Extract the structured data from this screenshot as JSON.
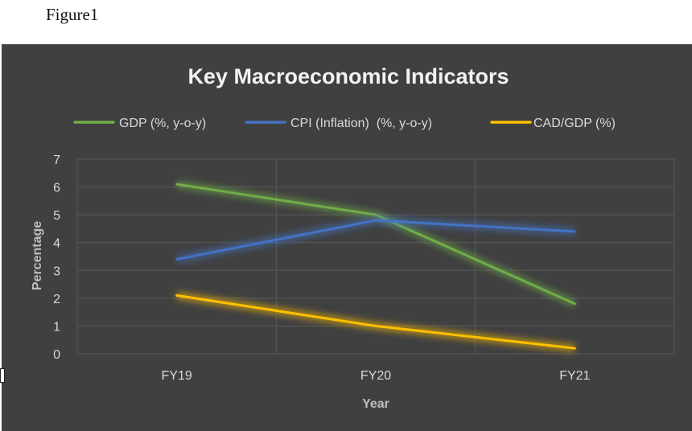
{
  "caption": "Figure1",
  "chart_data": {
    "type": "line",
    "title": "Key Macroeconomic Indicators",
    "xlabel": "Year",
    "ylabel": "Percentage",
    "categories": [
      "FY19",
      "FY20",
      "FY21"
    ],
    "ylim": [
      0,
      7
    ],
    "yticks": [
      0,
      1,
      2,
      3,
      4,
      5,
      6,
      7
    ],
    "grid": true,
    "legend_position": "top",
    "series": [
      {
        "name": "GDP (%, y-o-y)",
        "values": [
          6.1,
          5.0,
          1.8
        ],
        "color": "#70ad47"
      },
      {
        "name": "CPI (Inflation)  (%, y-o-y)",
        "values": [
          3.4,
          4.8,
          4.4
        ],
        "color": "#4472c4"
      },
      {
        "name": "CAD/GDP (%)",
        "values": [
          2.1,
          1.0,
          0.2
        ],
        "color": "#ffc000"
      }
    ]
  },
  "colors": {
    "background": "#404040",
    "grid": "#595959",
    "text": "#d9d9d9"
  }
}
